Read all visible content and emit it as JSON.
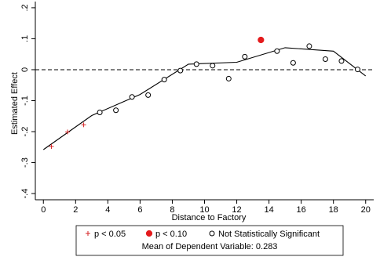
{
  "chart_data": {
    "type": "scatter",
    "xlabel": "Distance to Factory",
    "ylabel": "Estimated Effect",
    "xlim": [
      -0.5,
      20.5
    ],
    "ylim": [
      -0.42,
      0.22
    ],
    "xticks": [
      0,
      2,
      4,
      6,
      8,
      10,
      12,
      14,
      16,
      18,
      20
    ],
    "yticks": [
      {
        "v": 0.2,
        "label": ".2"
      },
      {
        "v": 0.1,
        "label": ".1"
      },
      {
        "v": 0,
        "label": "0"
      },
      {
        "v": -0.1,
        "label": "-.1"
      },
      {
        "v": -0.2,
        "label": "-.2"
      },
      {
        "v": -0.3,
        "label": "-.3"
      },
      {
        "v": -0.4,
        "label": "-.4"
      }
    ],
    "reference_line_y": 0,
    "grid": false,
    "series": [
      {
        "name": "p < 0.05",
        "marker": "plus",
        "color": "#d62728",
        "points": [
          [
            0.5,
            -0.248
          ],
          [
            1.5,
            -0.201
          ],
          [
            2.5,
            -0.178
          ]
        ]
      },
      {
        "name": "p < 0.10",
        "marker": "filled-circle",
        "color": "#e41a1c",
        "points": [
          [
            13.5,
            0.096
          ]
        ]
      },
      {
        "name": "Not Statistically Significant",
        "marker": "hollow-circle",
        "color": "#000000",
        "points": [
          [
            3.5,
            -0.138
          ],
          [
            4.5,
            -0.131
          ],
          [
            5.5,
            -0.088
          ],
          [
            6.5,
            -0.082
          ],
          [
            7.5,
            -0.032
          ],
          [
            8.5,
            -0.003
          ],
          [
            9.5,
            0.018
          ],
          [
            10.5,
            0.013
          ],
          [
            11.5,
            -0.029
          ],
          [
            12.5,
            0.042
          ],
          [
            14.5,
            0.06
          ],
          [
            15.5,
            0.022
          ],
          [
            16.5,
            0.076
          ],
          [
            17.5,
            0.034
          ],
          [
            18.5,
            0.028
          ],
          [
            19.5,
            0.001
          ]
        ]
      }
    ],
    "fit_line": {
      "color": "#000000",
      "points": [
        [
          0,
          -0.258
        ],
        [
          3,
          -0.148
        ],
        [
          6,
          -0.08
        ],
        [
          9,
          0.018
        ],
        [
          12,
          0.024
        ],
        [
          15,
          0.071
        ],
        [
          18,
          0.06
        ],
        [
          20,
          -0.02
        ]
      ]
    },
    "legend": {
      "placement": "bottom",
      "note": "Mean of Dependent Variable: 0.283"
    }
  }
}
